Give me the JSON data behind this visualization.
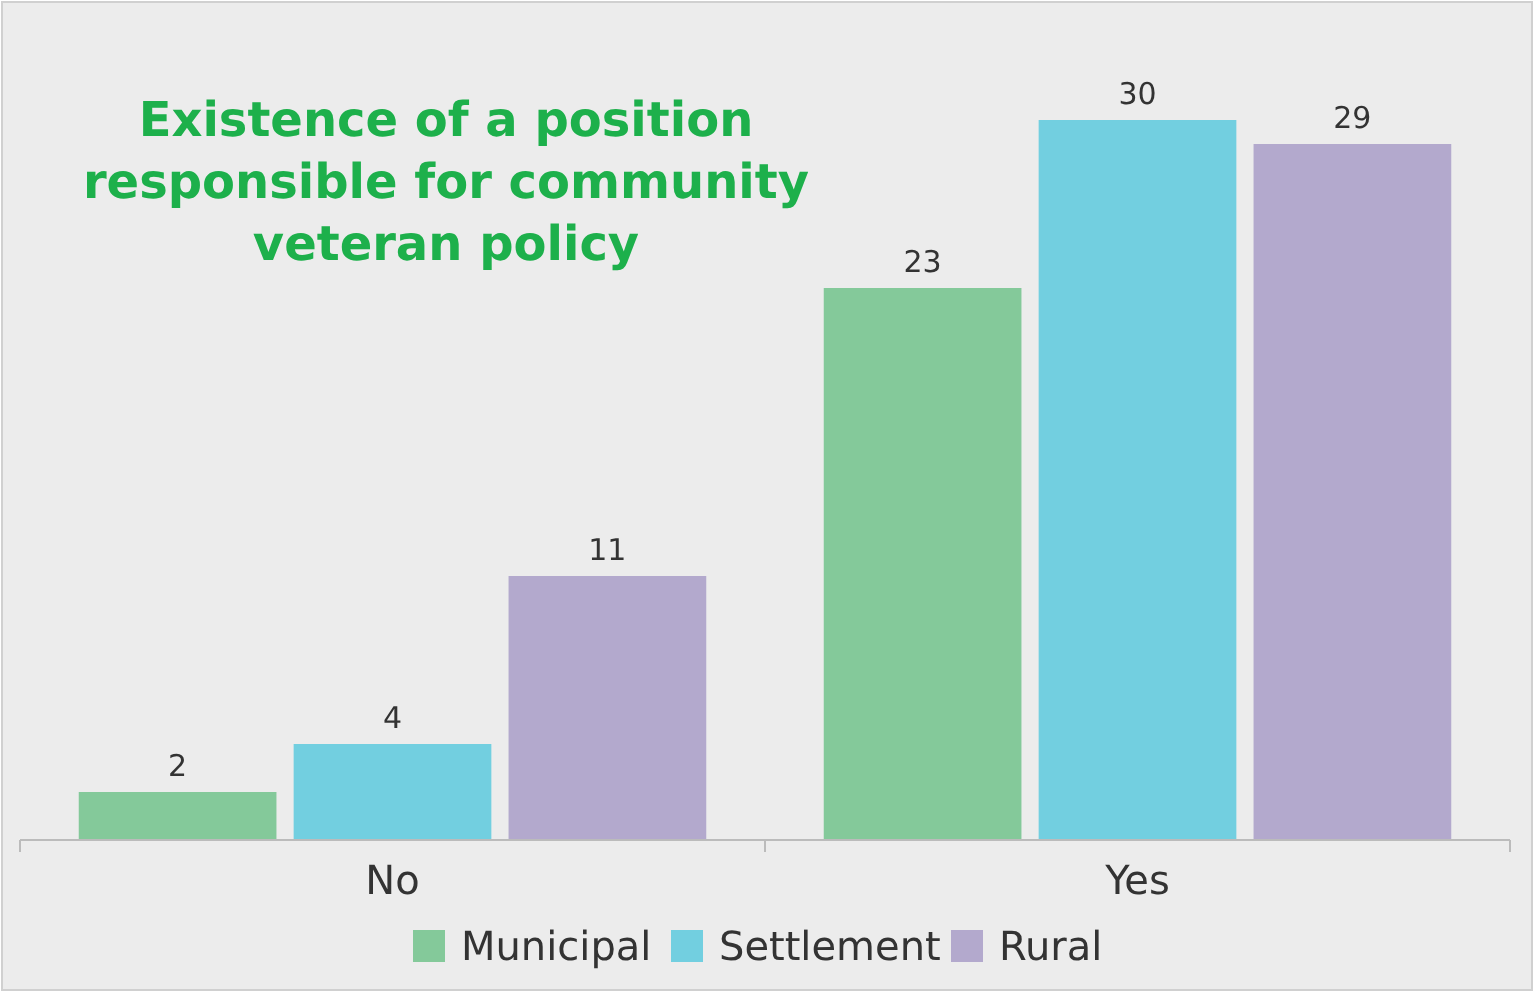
{
  "chart_data": {
    "type": "bar",
    "title": "Existence of a position responsible for community veteran policy",
    "categories": [
      "No",
      "Yes"
    ],
    "series": [
      {
        "name": "Municipal",
        "color": "#84c99a",
        "values": [
          2,
          23
        ]
      },
      {
        "name": "Settlement",
        "color": "#72cfe0",
        "values": [
          4,
          30
        ]
      },
      {
        "name": "Rural",
        "color": "#b3a9cd",
        "values": [
          11,
          29
        ]
      }
    ],
    "data_labels": true,
    "legend": "bottom",
    "grid": false
  }
}
